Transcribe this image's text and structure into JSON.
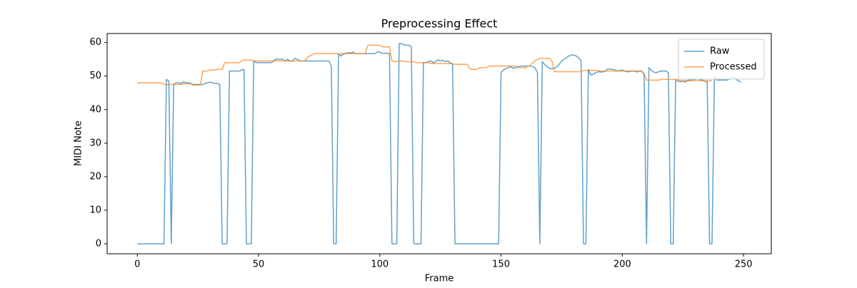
{
  "chart_data": {
    "type": "line",
    "title": "Preprocessing Effect",
    "xlabel": "Frame",
    "ylabel": "MIDI Note",
    "x": [
      0,
      1,
      2,
      3,
      4,
      5,
      6,
      7,
      8,
      9,
      10,
      11,
      12,
      13,
      14,
      15,
      16,
      17,
      18,
      19,
      20,
      21,
      22,
      23,
      24,
      25,
      26,
      27,
      28,
      29,
      30,
      31,
      32,
      33,
      34,
      35,
      36,
      37,
      38,
      39,
      40,
      41,
      42,
      43,
      44,
      45,
      46,
      47,
      48,
      49,
      50,
      51,
      52,
      53,
      54,
      55,
      56,
      57,
      58,
      59,
      60,
      61,
      62,
      63,
      64,
      65,
      66,
      67,
      68,
      69,
      70,
      71,
      72,
      73,
      74,
      75,
      76,
      77,
      78,
      79,
      80,
      81,
      82,
      83,
      84,
      85,
      86,
      87,
      88,
      89,
      90,
      91,
      92,
      93,
      94,
      95,
      96,
      97,
      98,
      99,
      100,
      101,
      102,
      103,
      104,
      105,
      106,
      107,
      108,
      109,
      110,
      111,
      112,
      113,
      114,
      115,
      116,
      117,
      118,
      119,
      120,
      121,
      122,
      123,
      124,
      125,
      126,
      127,
      128,
      129,
      130,
      131,
      132,
      133,
      134,
      135,
      136,
      137,
      138,
      139,
      140,
      141,
      142,
      143,
      144,
      145,
      146,
      147,
      148,
      149,
      150,
      151,
      152,
      153,
      154,
      155,
      156,
      157,
      158,
      159,
      160,
      161,
      162,
      163,
      164,
      165,
      166,
      167,
      168,
      169,
      170,
      171,
      172,
      173,
      174,
      175,
      176,
      177,
      178,
      179,
      180,
      181,
      182,
      183,
      184,
      185,
      186,
      187,
      188,
      189,
      190,
      191,
      192,
      193,
      194,
      195,
      196,
      197,
      198,
      199,
      200,
      201,
      202,
      203,
      204,
      205,
      206,
      207,
      208,
      209,
      210,
      211,
      212,
      213,
      214,
      215,
      216,
      217,
      218,
      219,
      220,
      221,
      222,
      223,
      224,
      225,
      226,
      227,
      228,
      229,
      230,
      231,
      232,
      233,
      234,
      235,
      236,
      237,
      238,
      239,
      240,
      241,
      242,
      243,
      244,
      245,
      246,
      247,
      248,
      249
    ],
    "series": [
      {
        "name": "Raw",
        "color": "#1f77b4",
        "values": [
          0,
          0,
          0,
          0,
          0,
          0,
          0,
          0,
          0,
          0,
          0,
          0,
          49,
          48.5,
          0,
          47.5,
          48,
          48,
          47.8,
          48.3,
          48,
          48,
          47.8,
          47.5,
          47.5,
          47.5,
          47.5,
          47.5,
          47.8,
          48,
          48.2,
          48,
          47.8,
          47.8,
          47.5,
          0,
          0,
          0,
          51.5,
          51.5,
          51.5,
          51.5,
          51.5,
          51.8,
          52,
          0,
          0,
          0,
          54.5,
          54,
          54,
          54,
          54,
          54,
          54,
          54,
          54.3,
          55,
          55,
          55,
          55,
          54.5,
          55,
          54.5,
          54.5,
          55.3,
          55,
          54.5,
          54.5,
          54.5,
          54.5,
          54.5,
          54.5,
          54.5,
          54.5,
          54.5,
          54.5,
          54.5,
          54.5,
          54.5,
          53,
          0,
          0,
          56.5,
          56,
          56.5,
          56.8,
          57,
          56.8,
          57.2,
          56.7,
          56.7,
          56.7,
          56.7,
          56.7,
          56.7,
          56.7,
          56.7,
          56.7,
          57.2,
          57.2,
          56.8,
          56.8,
          56.8,
          56.8,
          0,
          0,
          0,
          59.7,
          59.7,
          59.3,
          59.2,
          59.2,
          58.8,
          0,
          0,
          0,
          0,
          54,
          54,
          54.3,
          54.5,
          54,
          54.3,
          54.8,
          54.5,
          54.7,
          54.3,
          54.5,
          54,
          53.5,
          0,
          0,
          0,
          0,
          0,
          0,
          0,
          0,
          0,
          0,
          0,
          0,
          0,
          0,
          0,
          0,
          0,
          0,
          0,
          51,
          51.8,
          52.2,
          52.5,
          52.8,
          52.3,
          52.5,
          52.8,
          53,
          53,
          53,
          53,
          53,
          52.8,
          52.5,
          51,
          0,
          54.3,
          53.5,
          52.8,
          52.3,
          52.2,
          52.3,
          52.8,
          53.5,
          54.5,
          55,
          55.5,
          56,
          56.3,
          56.3,
          56,
          55.5,
          54.5,
          0,
          0,
          52,
          50.3,
          50.5,
          51,
          51.3,
          51.2,
          51.2,
          51.5,
          52.2,
          52,
          52,
          51.8,
          51.5,
          51.7,
          51.8,
          51.5,
          51.3,
          51.3,
          51.5,
          51.5,
          51.2,
          51.5,
          51.5,
          50.5,
          0,
          52.5,
          51.7,
          51.2,
          51,
          51.3,
          51.5,
          51.5,
          51.5,
          51,
          0,
          0,
          48.8,
          48.5,
          48.3,
          48.5,
          48.2,
          48.8,
          48.8,
          49,
          49,
          49.2,
          49,
          48.8,
          48.5,
          48.3,
          0,
          0,
          49.8,
          48.8,
          48.8,
          48.8,
          48.8,
          48.8,
          49,
          49.5,
          49.5,
          49,
          48.5,
          48.3
        ]
      },
      {
        "name": "Processed",
        "color": "#ff7f0e",
        "values": [
          47.8,
          48,
          48,
          48,
          48,
          48,
          48,
          48,
          48,
          48,
          48,
          47.5,
          47.5,
          47.5,
          47.5,
          47.5,
          47.5,
          47.5,
          47.5,
          47.7,
          47.7,
          47.7,
          47.7,
          47.3,
          47.3,
          47.3,
          47.3,
          51.5,
          51.5,
          51.5,
          51.8,
          51.8,
          51.8,
          52,
          52,
          52,
          54,
          54,
          54,
          54,
          54,
          54,
          54,
          54.5,
          54.8,
          54.8,
          54.8,
          54.8,
          54.5,
          54.5,
          54.5,
          54.5,
          54.5,
          54.5,
          54.5,
          54.5,
          54.5,
          54.5,
          54.5,
          54.5,
          54.5,
          54.5,
          54.5,
          54.5,
          54.5,
          54.5,
          54.5,
          54.5,
          54.5,
          54.5,
          55.5,
          56,
          56.3,
          56.7,
          56.7,
          56.7,
          56.7,
          56.7,
          56.7,
          56.7,
          56.7,
          56.7,
          56.7,
          56.7,
          56.7,
          56.7,
          56.7,
          56.7,
          56.7,
          56.7,
          56.7,
          56.7,
          56.7,
          56.7,
          56.7,
          59.2,
          59.2,
          59.2,
          59.2,
          59.2,
          59.2,
          58.7,
          58.7,
          58.7,
          58.7,
          54.5,
          54.3,
          54.3,
          54.5,
          54.5,
          54.5,
          54.3,
          54.3,
          54.3,
          54.3,
          54,
          54,
          54,
          54,
          54,
          54,
          53.7,
          53.7,
          53.7,
          53.7,
          53.7,
          53.7,
          53.7,
          53.7,
          53.7,
          53.7,
          53.5,
          53.5,
          53.5,
          53.5,
          53.5,
          53.5,
          52.3,
          52,
          52,
          52,
          52.5,
          52.5,
          52.5,
          52.5,
          53,
          53,
          53,
          53,
          53,
          53,
          53,
          53,
          53,
          53,
          53,
          53,
          52.5,
          52.5,
          52.5,
          52.5,
          53,
          53,
          54,
          54.5,
          55,
          55.3,
          55.3,
          55.3,
          55.3,
          55.3,
          54.5,
          51.3,
          51.3,
          51.3,
          51.3,
          51.3,
          51.3,
          51.3,
          51.3,
          51.3,
          51.3,
          51.3,
          51.3,
          51.7,
          51.7,
          51.7,
          51.7,
          51.7,
          51.7,
          51.7,
          51.5,
          51.5,
          51.5,
          51.5,
          51.5,
          51.5,
          51.5,
          51.5,
          51.5,
          51.5,
          51.5,
          51.5,
          51.5,
          51.5,
          51.5,
          51.5,
          51.5,
          51.5,
          50.8,
          48.8,
          48.8,
          48.8,
          48.8,
          48.8,
          48.8,
          49,
          49,
          49,
          49,
          49,
          49,
          49,
          49,
          48.6,
          48.6,
          48.6,
          48.6,
          48.6,
          48.6,
          48.6,
          48.6,
          48.6,
          48.6,
          48.6,
          48.6,
          48.6,
          48.6,
          null,
          null,
          null,
          null,
          null,
          null,
          null,
          null,
          null,
          null,
          null,
          null
        ]
      }
    ],
    "line_alpha": 0.7,
    "xlim": [
      -12.45,
      261.45
    ],
    "xticks": [
      0,
      50,
      100,
      150,
      200,
      250
    ],
    "ylim": [
      -2.98,
      62.69
    ],
    "yticks": [
      0,
      10,
      20,
      30,
      40,
      50,
      60
    ],
    "legend": "upper right"
  }
}
